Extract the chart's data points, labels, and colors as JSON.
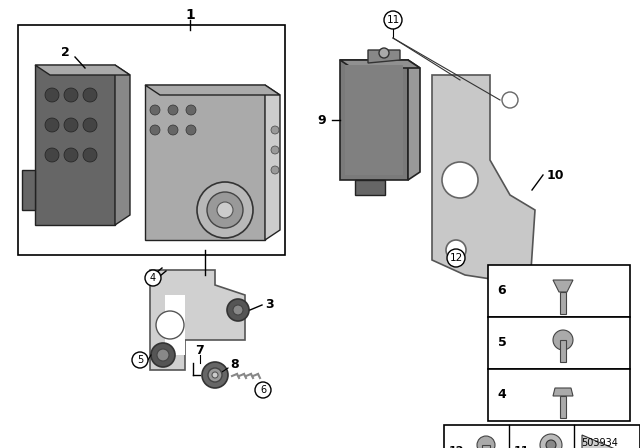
{
  "part_number": "503934",
  "bg_color": "#ffffff",
  "ecu_dark": "#666666",
  "ecu_mid": "#888888",
  "ecu_light": "#aaaaaa",
  "hydro_dark": "#888888",
  "hydro_mid": "#aaaaaa",
  "hydro_light": "#cccccc",
  "bracket_color": "#bbbbbb",
  "bracket_light": "#d0d0d0",
  "module_dark": "#777777",
  "module_mid": "#999999",
  "plate_color": "#c8c8c8",
  "line_color": "#000000",
  "label_fontsize": 9,
  "circled_fontsize": 7.5
}
